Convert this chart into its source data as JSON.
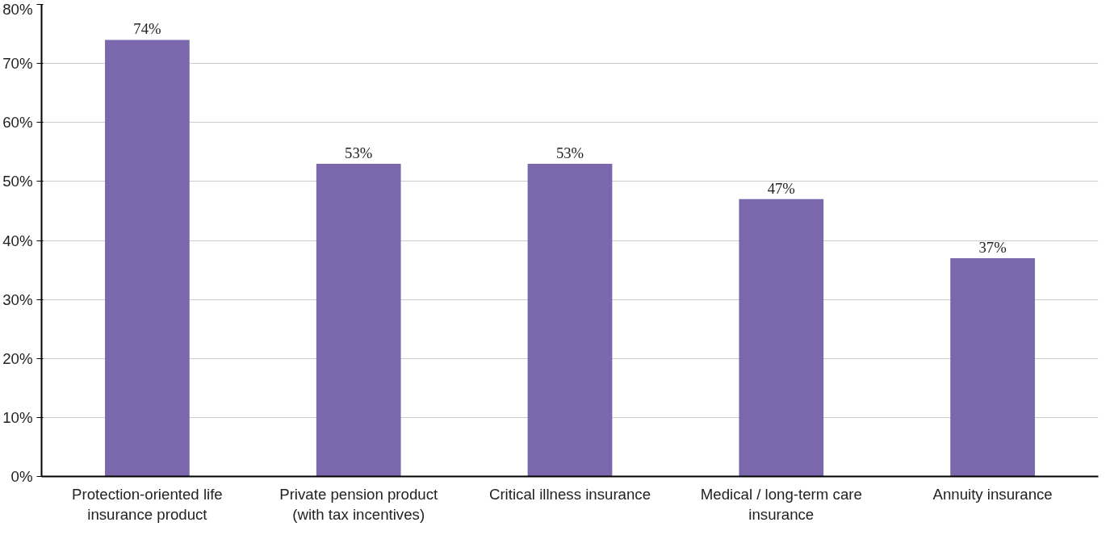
{
  "chart_data": {
    "type": "bar",
    "categories": [
      "Protection-oriented life insurance product",
      "Private pension product (with tax incentives)",
      "Critical illness insurance",
      "Medical / long-term care insurance",
      "Annuity insurance"
    ],
    "values": [
      74,
      53,
      53,
      47,
      37
    ],
    "value_labels": [
      "74%",
      "53%",
      "53%",
      "47%",
      "37%"
    ],
    "color": "#7b67ab",
    "ylim": [
      0,
      80
    ],
    "yticks": [
      {
        "value": 0,
        "label": "0%"
      },
      {
        "value": 10,
        "label": "10%"
      },
      {
        "value": 20,
        "label": "20%"
      },
      {
        "value": 30,
        "label": "30%"
      },
      {
        "value": 40,
        "label": "40%"
      },
      {
        "value": 50,
        "label": "50%"
      },
      {
        "value": 60,
        "label": "60%"
      },
      {
        "value": 70,
        "label": "70%"
      },
      {
        "value": 80,
        "label": "80%"
      }
    ],
    "grid": "y"
  }
}
